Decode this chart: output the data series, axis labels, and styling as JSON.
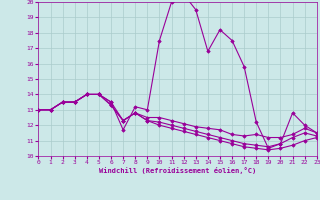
{
  "xlabel": "Windchill (Refroidissement éolien,°C)",
  "xlim": [
    0,
    23
  ],
  "ylim": [
    10,
    20
  ],
  "xticks": [
    0,
    1,
    2,
    3,
    4,
    5,
    6,
    7,
    8,
    9,
    10,
    11,
    12,
    13,
    14,
    15,
    16,
    17,
    18,
    19,
    20,
    21,
    22,
    23
  ],
  "yticks": [
    10,
    11,
    12,
    13,
    14,
    15,
    16,
    17,
    18,
    19,
    20
  ],
  "bg_color": "#cce8e8",
  "line_color": "#990099",
  "grid_color": "#aacccc",
  "series": [
    [
      13,
      13,
      13.5,
      13.5,
      14,
      14,
      13.5,
      11.7,
      13.2,
      13.0,
      17.5,
      20.0,
      20.5,
      19.5,
      16.8,
      18.2,
      17.5,
      15.8,
      12.2,
      10.5,
      10.8,
      12.8,
      12.0,
      11.5
    ],
    [
      13,
      13,
      13.5,
      13.5,
      14.0,
      14.0,
      13.5,
      12.3,
      12.8,
      12.5,
      12.5,
      12.3,
      12.1,
      11.9,
      11.8,
      11.7,
      11.4,
      11.3,
      11.4,
      11.2,
      11.2,
      11.4,
      11.8,
      11.5
    ],
    [
      13,
      13,
      13.5,
      13.5,
      14.0,
      14.0,
      13.3,
      12.3,
      12.8,
      12.3,
      12.2,
      12.0,
      11.8,
      11.6,
      11.4,
      11.2,
      11.0,
      10.8,
      10.7,
      10.6,
      10.8,
      11.2,
      11.5,
      11.3
    ],
    [
      13,
      13,
      13.5,
      13.5,
      14.0,
      14.0,
      13.3,
      12.3,
      12.8,
      12.3,
      12.0,
      11.8,
      11.6,
      11.4,
      11.2,
      11.0,
      10.8,
      10.6,
      10.5,
      10.4,
      10.5,
      10.7,
      11.0,
      11.2
    ]
  ]
}
